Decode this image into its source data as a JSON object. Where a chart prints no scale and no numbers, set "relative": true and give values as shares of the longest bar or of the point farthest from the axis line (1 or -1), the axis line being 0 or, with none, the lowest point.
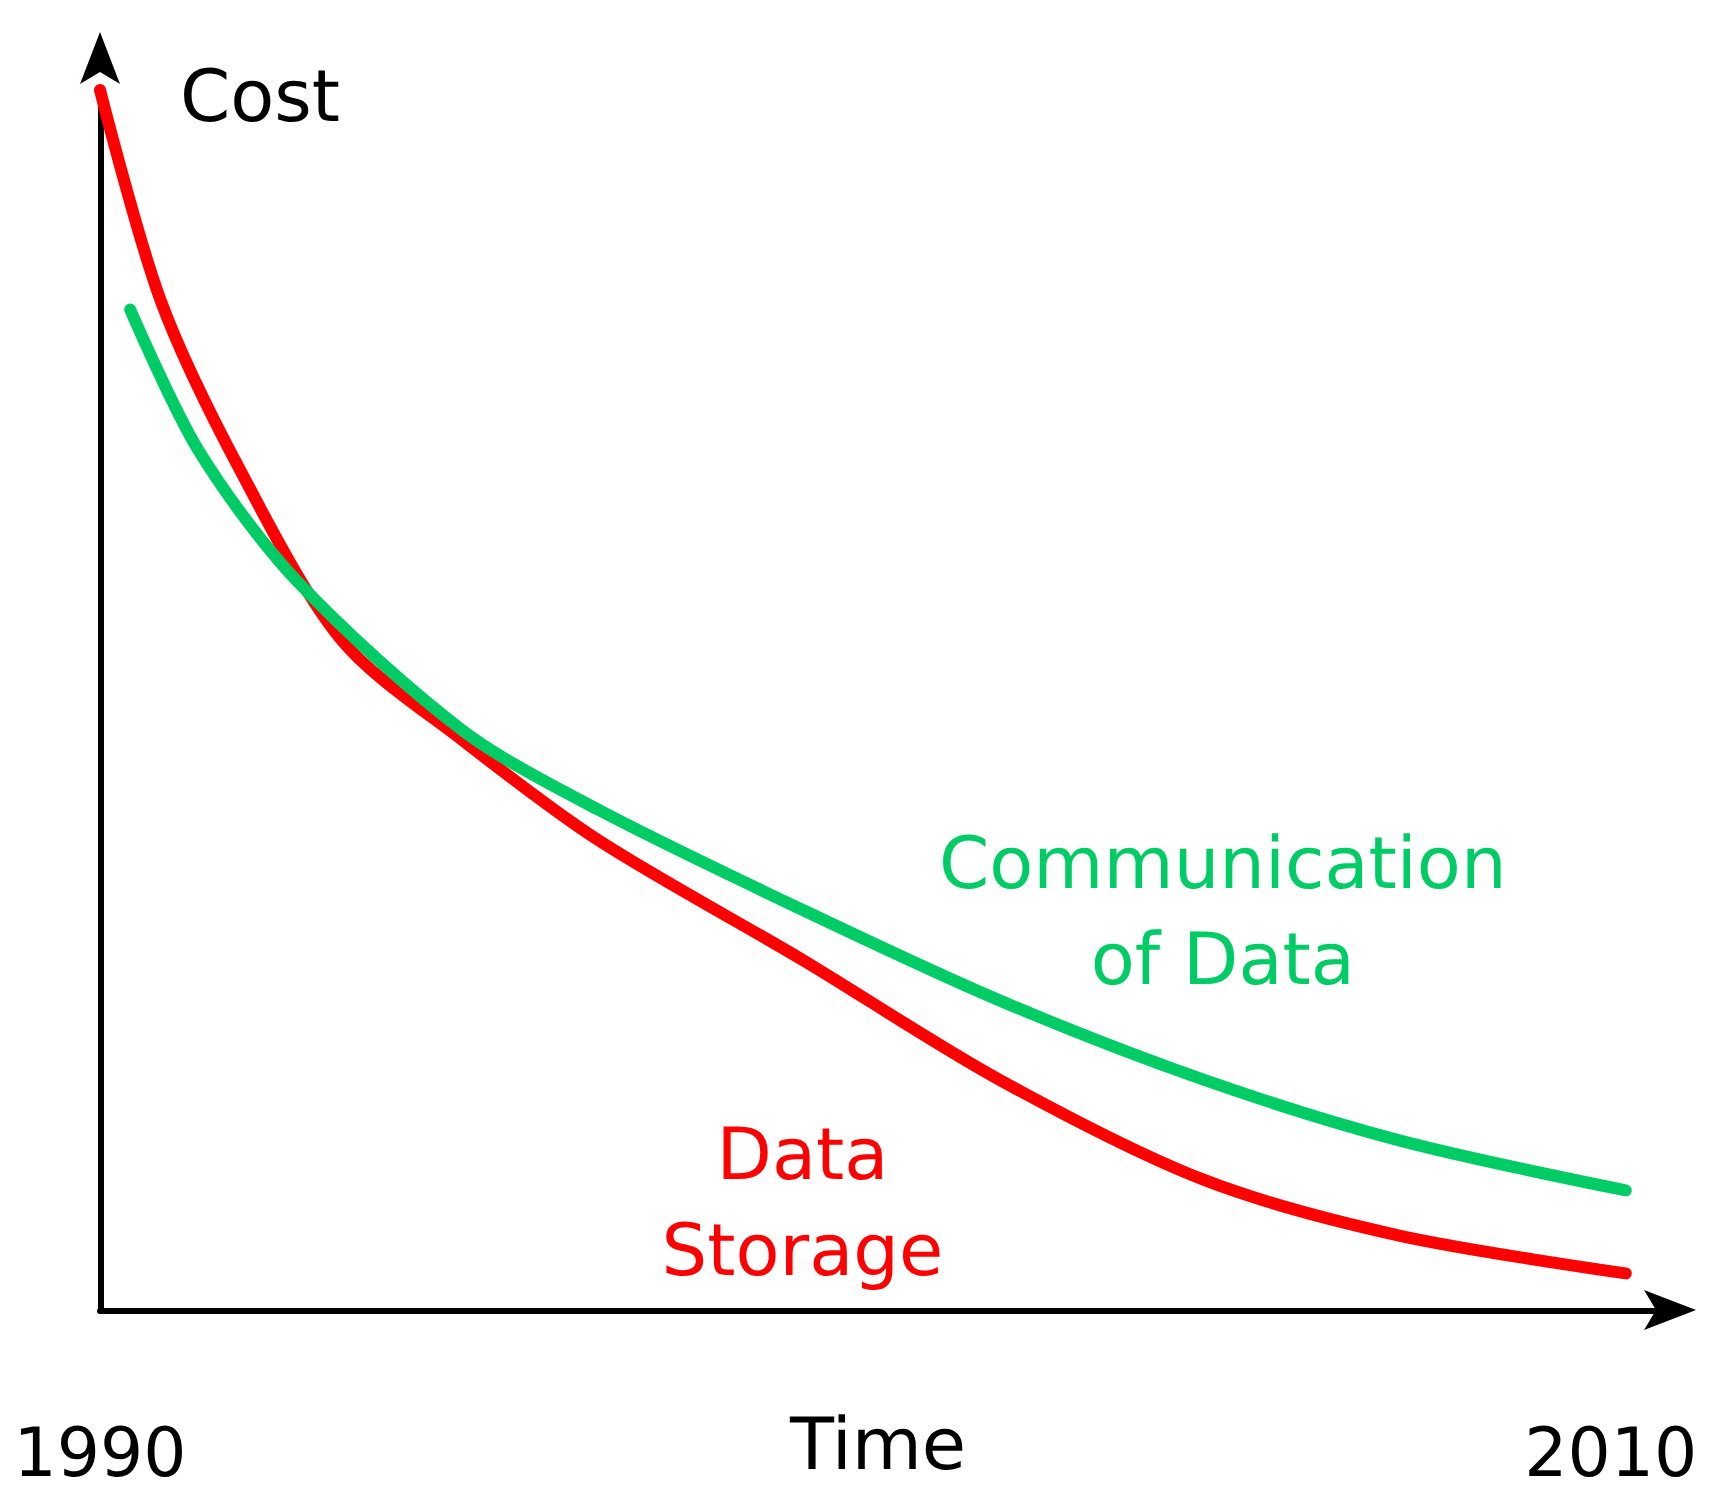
{
  "chart_data": {
    "type": "line",
    "relative": true,
    "xlabel": "Time",
    "ylabel": "Cost",
    "xlim": [
      1990,
      2010.6
    ],
    "xticks": [
      1990,
      2010
    ],
    "grid": false,
    "legend": false,
    "marker": "none",
    "line_style": "solid",
    "tick_labels": "x",
    "series": [
      {
        "name": "Data Storage",
        "color": "#ff0000",
        "x": [
          1990,
          1990.8,
          1991.85,
          1993.2,
          1994.8,
          1996.6,
          1999.3,
          2001.9,
          2004.6,
          2007.2,
          2010.2
        ],
        "values": [
          1,
          0.828,
          0.689,
          0.549,
          0.467,
          0.385,
          0.287,
          0.189,
          0.107,
          0.061,
          0.03
        ]
      },
      {
        "name": "Communication of Data",
        "color": "#00cc66",
        "x": [
          1990.4,
          1991.3,
          1992.6,
          1994.8,
          1996.6,
          1999.3,
          2001.9,
          2004.6,
          2007.2,
          2010.2
        ],
        "values": [
          0.82,
          0.705,
          0.598,
          0.475,
          0.41,
          0.328,
          0.254,
          0.189,
          0.139,
          0.098
        ]
      }
    ]
  }
}
